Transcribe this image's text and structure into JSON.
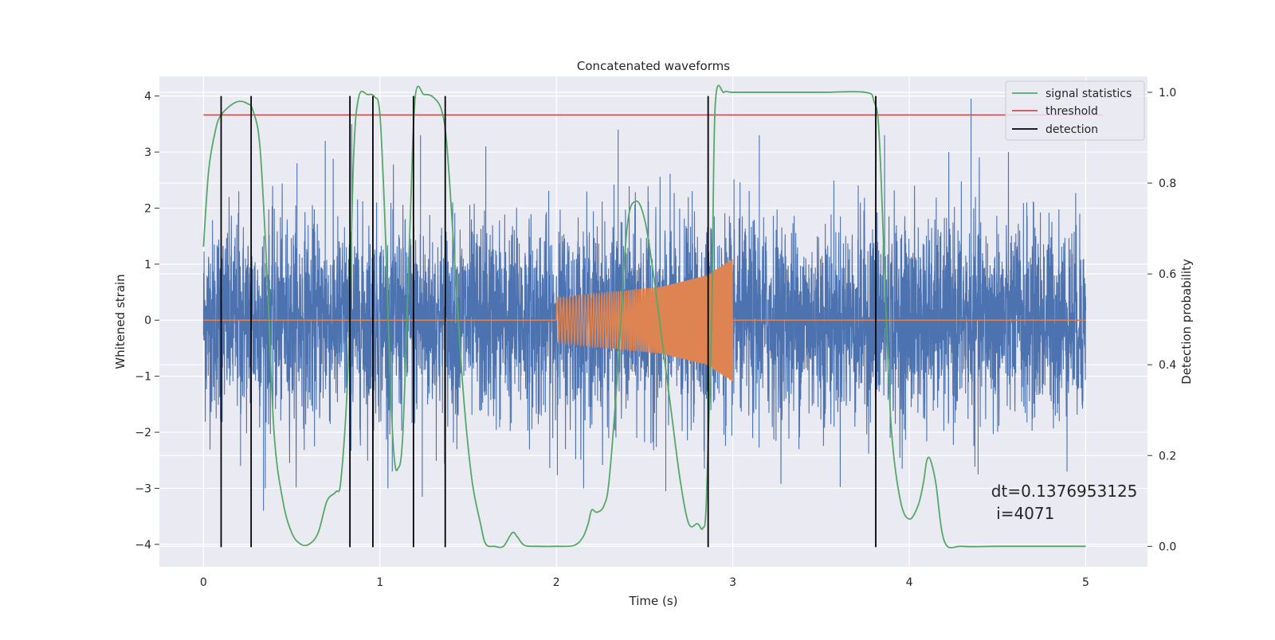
{
  "chart_data": {
    "type": "line",
    "title": "Concatenated waveforms",
    "xlabel": "Time (s)",
    "ylabel": "Whitened strain",
    "y2label": "Detection probability",
    "xlim": [
      -0.25,
      5.35
    ],
    "ylim": [
      -4.4,
      4.35
    ],
    "y2lim": [
      -0.045,
      1.035
    ],
    "xticks": [
      0,
      1,
      2,
      3,
      4,
      5
    ],
    "yticks": [
      -4,
      -3,
      -2,
      -1,
      0,
      1,
      2,
      3,
      4
    ],
    "y2ticks": [
      0.0,
      0.2,
      0.4,
      0.6,
      0.8,
      1.0
    ],
    "grid": true,
    "legend_position": "top-right",
    "legend": [
      {
        "name": "signal statistics",
        "color": "#55a868"
      },
      {
        "name": "threshold",
        "color": "#c44e52"
      },
      {
        "name": "detection",
        "color": "#000000"
      }
    ],
    "series": [
      {
        "name": "Whitened strain (noise)",
        "axis": "left",
        "color": "#4c72b0",
        "x_range": [
          0,
          5
        ],
        "typical_amplitude": 1.6,
        "peak_values": [
          {
            "x": 0.2,
            "y": 2.3
          },
          {
            "x": 0.21,
            "y": -2.6
          },
          {
            "x": 0.34,
            "y": -3.4
          },
          {
            "x": 0.53,
            "y": 2.8
          },
          {
            "x": 0.69,
            "y": 3.2
          },
          {
            "x": 0.84,
            "y": 3.5
          },
          {
            "x": 1.07,
            "y": -2.7
          },
          {
            "x": 1.23,
            "y": 3.3
          },
          {
            "x": 1.24,
            "y": -3.15
          },
          {
            "x": 1.6,
            "y": 3.1
          },
          {
            "x": 2.35,
            "y": 3.4
          },
          {
            "x": 2.62,
            "y": -3.05
          },
          {
            "x": 3.15,
            "y": 3.3
          },
          {
            "x": 3.86,
            "y": 3.3
          },
          {
            "x": 4.35,
            "y": 3.95
          },
          {
            "x": 4.39,
            "y": -2.75
          }
        ]
      },
      {
        "name": "Injected signal",
        "axis": "left",
        "color": "#dd8452",
        "x": [
          0,
          2.0,
          2.0,
          2.3,
          2.6,
          2.85,
          3.0,
          3.0,
          5
        ],
        "envelope": [
          0,
          0,
          0.4,
          0.5,
          0.6,
          0.8,
          1.1,
          0,
          0
        ]
      },
      {
        "name": "signal statistics",
        "axis": "right",
        "color": "#55a868",
        "x": [
          0.0,
          0.03,
          0.07,
          0.1,
          0.15,
          0.2,
          0.25,
          0.28,
          0.32,
          0.36,
          0.4,
          0.45,
          0.5,
          0.55,
          0.6,
          0.65,
          0.7,
          0.75,
          0.78,
          0.82,
          0.85,
          0.88,
          0.93,
          0.97,
          1.0,
          1.03,
          1.06,
          1.08,
          1.1,
          1.13,
          1.17,
          1.2,
          1.25,
          1.3,
          1.35,
          1.38,
          1.42,
          1.47,
          1.52,
          1.57,
          1.6,
          1.65,
          1.7,
          1.75,
          1.78,
          1.82,
          1.9,
          2.0,
          2.1,
          2.15,
          2.18,
          2.2,
          2.23,
          2.27,
          2.3,
          2.35,
          2.4,
          2.45,
          2.5,
          2.55,
          2.6,
          2.65,
          2.7,
          2.75,
          2.8,
          2.83,
          2.85,
          2.88,
          2.9,
          2.95,
          3.0,
          3.2,
          3.5,
          3.75,
          3.8,
          3.83,
          3.87,
          3.9,
          3.95,
          4.0,
          4.05,
          4.08,
          4.1,
          4.12,
          4.15,
          4.2,
          4.3,
          4.5,
          5.0
        ],
        "y": [
          0.66,
          0.83,
          0.92,
          0.95,
          0.97,
          0.98,
          0.975,
          0.96,
          0.88,
          0.6,
          0.25,
          0.1,
          0.03,
          0.005,
          0.005,
          0.03,
          0.1,
          0.12,
          0.15,
          0.4,
          0.85,
          0.99,
          0.995,
          0.99,
          0.95,
          0.7,
          0.35,
          0.2,
          0.17,
          0.25,
          0.7,
          0.99,
          0.995,
          0.99,
          0.96,
          0.88,
          0.65,
          0.35,
          0.15,
          0.05,
          0.005,
          0.0,
          0.0,
          0.03,
          0.02,
          0.002,
          0.0,
          0.0,
          0.002,
          0.02,
          0.05,
          0.08,
          0.075,
          0.09,
          0.15,
          0.4,
          0.7,
          0.76,
          0.72,
          0.6,
          0.45,
          0.3,
          0.15,
          0.05,
          0.05,
          0.04,
          0.1,
          0.5,
          0.97,
          1.0,
          1.0,
          1.0,
          1.0,
          1.0,
          0.98,
          0.9,
          0.5,
          0.25,
          0.1,
          0.06,
          0.09,
          0.14,
          0.19,
          0.19,
          0.14,
          0.01,
          0.0,
          0.0,
          0.0
        ]
      },
      {
        "name": "threshold",
        "axis": "right",
        "color": "#c44e52",
        "x": [
          0,
          5
        ],
        "y": [
          0.95,
          0.95
        ]
      },
      {
        "name": "detection",
        "axis": "left",
        "color": "#000000",
        "x": [
          0.1,
          0.27,
          0.83,
          0.96,
          1.19,
          1.37,
          2.86,
          3.81
        ],
        "y_range": [
          -4.05,
          4.0
        ]
      }
    ],
    "annotations": [
      {
        "text": "dt=0.1376953125",
        "x": 4.5,
        "y": -3.15
      },
      {
        "text": " i=4071",
        "x": 4.5,
        "y": -3.55
      }
    ]
  }
}
